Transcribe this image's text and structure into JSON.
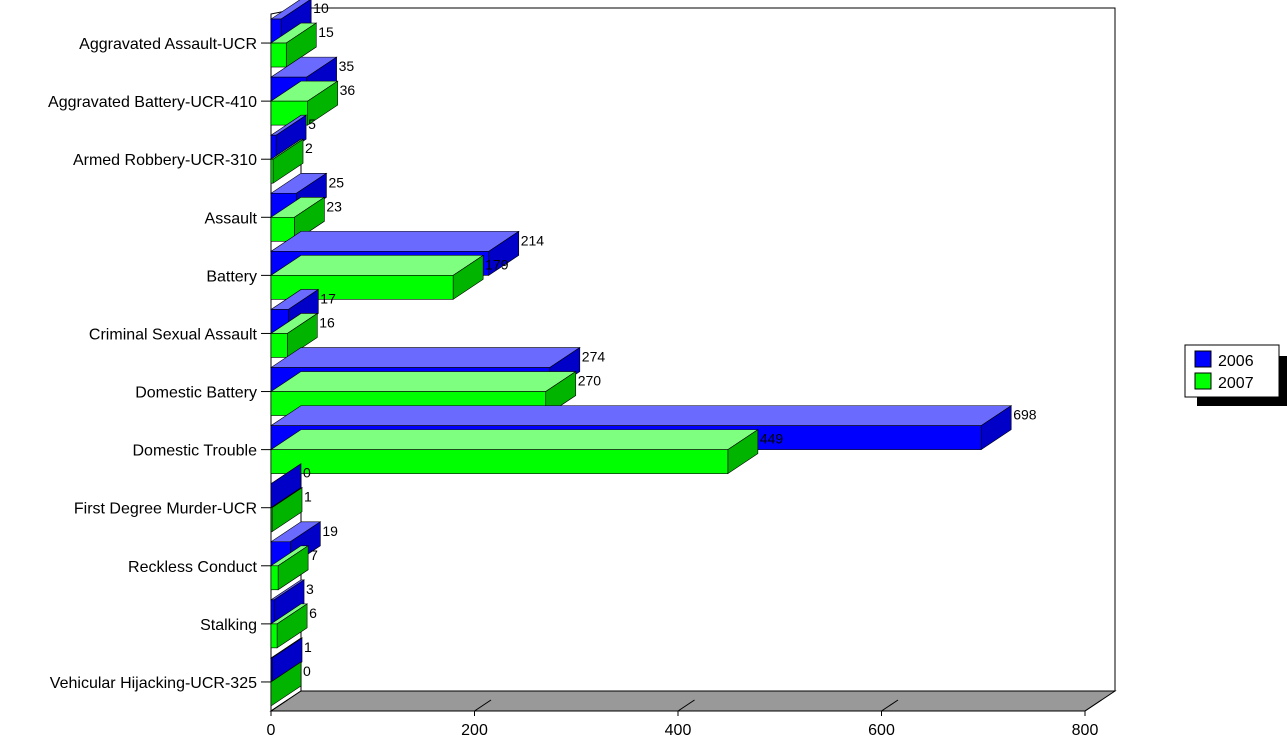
{
  "chart_data": {
    "type": "bar",
    "orientation": "horizontal",
    "three_d": true,
    "categories": [
      "Aggravated Assault-UCR",
      "Aggravated Battery-UCR-410",
      "Armed Robbery-UCR-310",
      "Assault",
      "Battery",
      "Criminal Sexual Assault",
      "Domestic Battery",
      "Domestic Trouble",
      "First Degree Murder-UCR",
      "Reckless Conduct",
      "Stalking",
      "Vehicular Hijacking-UCR-325"
    ],
    "series": [
      {
        "name": "2006",
        "color": "#0000ff",
        "values": [
          10,
          35,
          5,
          25,
          214,
          17,
          274,
          698,
          0,
          19,
          3,
          1
        ]
      },
      {
        "name": "2007",
        "color": "#00ff00",
        "values": [
          15,
          36,
          2,
          23,
          179,
          16,
          270,
          449,
          1,
          7,
          6,
          0
        ]
      }
    ],
    "x_ticks": [
      "0",
      "200",
      "400",
      "600",
      "800"
    ],
    "xlim": [
      0,
      800
    ],
    "title": "",
    "xlabel": "",
    "ylabel": "",
    "grid": false,
    "legend_position": "right",
    "floor_color": "#999999"
  }
}
